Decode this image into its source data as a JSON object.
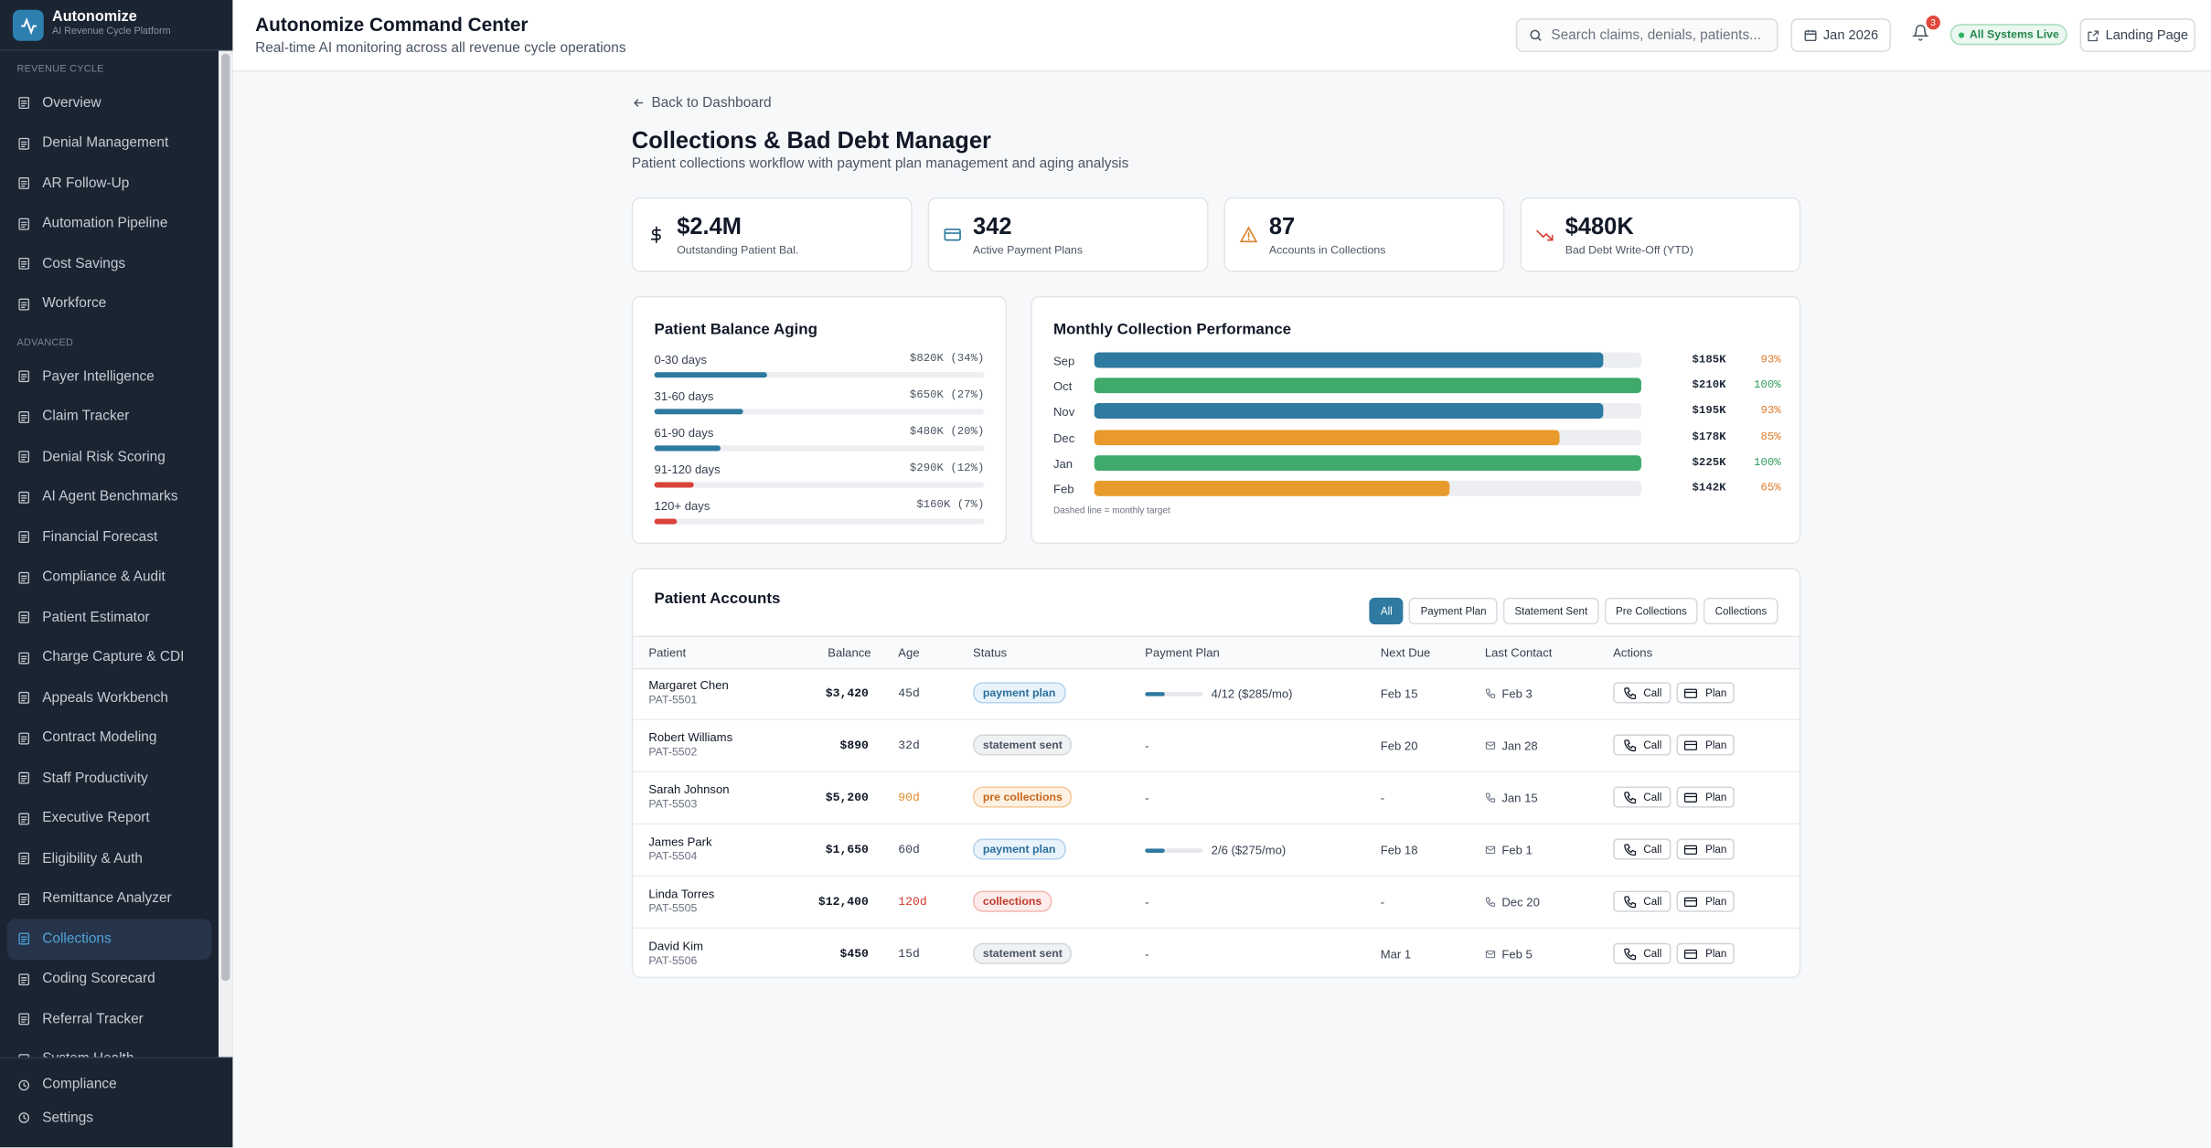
{
  "sidebar": {
    "brand": "Autonomize",
    "tagline": "AI Revenue Cycle Platform",
    "sections": [
      {
        "title": "REVENUE CYCLE",
        "items": [
          "Overview",
          "Denial Management",
          "AR Follow-Up",
          "Automation Pipeline",
          "Cost Savings",
          "Workforce"
        ]
      },
      {
        "title": "ADVANCED",
        "items": [
          "Payer Intelligence",
          "Claim Tracker",
          "Denial Risk Scoring",
          "AI Agent Benchmarks",
          "Financial Forecast",
          "Compliance & Audit",
          "Patient Estimator",
          "Charge Capture & CDI",
          "Appeals Workbench",
          "Contract Modeling",
          "Staff Productivity",
          "Executive Report",
          "Eligibility & Auth",
          "Remittance Analyzer",
          "Collections",
          "Coding Scorecard",
          "Referral Tracker",
          "System Health"
        ]
      }
    ],
    "active_section": 1,
    "active_item": 14,
    "footer_items": [
      "Compliance",
      "Settings"
    ]
  },
  "header": {
    "title": "Autonomize Command Center",
    "subtitle": "Real-time AI monitoring across all revenue cycle operations",
    "search_placeholder": "Search claims, denials, patients...",
    "date": "Jan 2026",
    "notifications": 3,
    "status": "All Systems Live",
    "landing": "Landing Page"
  },
  "page": {
    "back": "Back to Dashboard",
    "title": "Collections & Bad Debt Manager",
    "subtitle": "Patient collections workflow with payment plan management and aging analysis"
  },
  "kpis": [
    {
      "value": "$2.4M",
      "label": "Outstanding Patient Bal."
    },
    {
      "value": "342",
      "label": "Active Payment Plans"
    },
    {
      "value": "87",
      "label": "Accounts in Collections"
    },
    {
      "value": "$480K",
      "label": "Bad Debt Write-Off (YTD)"
    }
  ],
  "aging": {
    "title": "Patient Balance Aging",
    "rows": [
      {
        "label": "0-30 days",
        "value_label": "$820K (34%)",
        "pct": 34,
        "color": "#2e7aa0"
      },
      {
        "label": "31-60 days",
        "value_label": "$650K (27%)",
        "pct": 27,
        "color": "#2e7aa0"
      },
      {
        "label": "61-90 days",
        "value_label": "$480K (20%)",
        "pct": 20,
        "color": "#2e7aa0"
      },
      {
        "label": "91-120 days",
        "value_label": "$290K (12%)",
        "pct": 12,
        "color": "#d9443a"
      },
      {
        "label": "120+ days",
        "value_label": "$160K (7%)",
        "pct": 7,
        "color": "#d9443a"
      }
    ]
  },
  "monthly": {
    "title": "Monthly Collection Performance",
    "rows": [
      {
        "month": "Sep",
        "amount": "$185K",
        "pct": 93,
        "pct_label": "93%",
        "color": "#2e7aa0",
        "label_color": "#e07b2a"
      },
      {
        "month": "Oct",
        "amount": "$210K",
        "pct": 100,
        "pct_label": "100%",
        "color": "#3faa6b",
        "label_color": "#2f9a5c"
      },
      {
        "month": "Nov",
        "amount": "$195K",
        "pct": 93,
        "pct_label": "93%",
        "color": "#2e7aa0",
        "label_color": "#e07b2a"
      },
      {
        "month": "Dec",
        "amount": "$178K",
        "pct": 85,
        "pct_label": "85%",
        "color": "#e89b2c",
        "label_color": "#e07b2a"
      },
      {
        "month": "Jan",
        "amount": "$225K",
        "pct": 100,
        "pct_label": "100%",
        "color": "#3faa6b",
        "label_color": "#2f9a5c"
      },
      {
        "month": "Feb",
        "amount": "$142K",
        "pct": 65,
        "pct_label": "65%",
        "color": "#e89b2c",
        "label_color": "#e07b2a"
      }
    ],
    "note": "Dashed line = monthly target"
  },
  "accounts": {
    "title": "Patient Accounts",
    "filters": [
      "All",
      "Payment Plan",
      "Statement Sent",
      "Pre Collections",
      "Collections"
    ],
    "active_filter": 0,
    "columns": [
      "Patient",
      "Balance",
      "Age",
      "Status",
      "Payment Plan",
      "Next Due",
      "Last Contact",
      "Actions"
    ],
    "action_labels": [
      "Call",
      "Plan"
    ],
    "rows": [
      {
        "name": "Margaret Chen",
        "id": "PAT-5501",
        "balance": "$3,420",
        "age": "45d",
        "age_style": "normal",
        "status": "payment plan",
        "status_style": "info",
        "plan": {
          "label": "4/12 ($285/mo)",
          "paid": 4,
          "total": 12
        },
        "next_due": "Feb 15",
        "last_contact": "Feb 3",
        "channel": "phone"
      },
      {
        "name": "Robert Williams",
        "id": "PAT-5502",
        "balance": "$890",
        "age": "32d",
        "age_style": "normal",
        "status": "statement sent",
        "status_style": "neutral",
        "plan": "-",
        "next_due": "Feb 20",
        "last_contact": "Jan 28",
        "channel": "mail"
      },
      {
        "name": "Sarah Johnson",
        "id": "PAT-5503",
        "balance": "$5,200",
        "age": "90d",
        "age_style": "warning",
        "status": "pre collections",
        "status_style": "warning",
        "plan": "-",
        "next_due": "-",
        "last_contact": "Jan 15",
        "channel": "phone"
      },
      {
        "name": "James Park",
        "id": "PAT-5504",
        "balance": "$1,650",
        "age": "60d",
        "age_style": "normal",
        "status": "payment plan",
        "status_style": "info",
        "plan": {
          "label": "2/6 ($275/mo)",
          "paid": 2,
          "total": 6
        },
        "next_due": "Feb 18",
        "last_contact": "Feb 1",
        "channel": "mail"
      },
      {
        "name": "Linda Torres",
        "id": "PAT-5505",
        "balance": "$12,400",
        "age": "120d",
        "age_style": "danger",
        "status": "collections",
        "status_style": "danger",
        "plan": "-",
        "next_due": "-",
        "last_contact": "Dec 20",
        "channel": "phone"
      },
      {
        "name": "David Kim",
        "id": "PAT-5506",
        "balance": "$450",
        "age": "15d",
        "age_style": "normal",
        "status": "statement sent",
        "status_style": "neutral",
        "plan": "-",
        "next_due": "Mar 1",
        "last_contact": "Feb 5",
        "channel": "mail"
      }
    ]
  }
}
